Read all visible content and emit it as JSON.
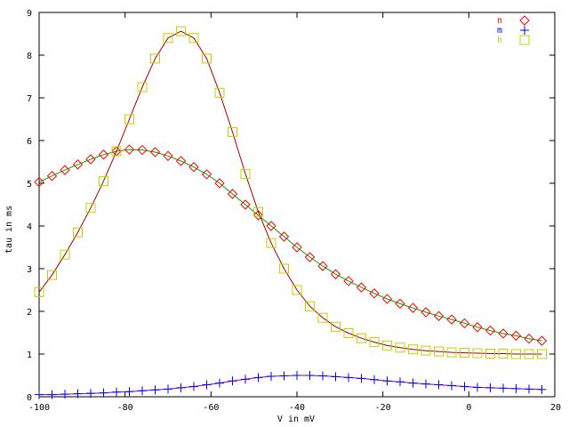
{
  "chart_data": {
    "type": "line",
    "title": "",
    "xlabel": "V in mV",
    "ylabel": "tau in ms",
    "xlim": [
      -100,
      20
    ],
    "ylim": [
      0,
      9
    ],
    "xticks": [
      -100,
      -80,
      -60,
      -40,
      -20,
      0,
      20
    ],
    "yticks": [
      0,
      1,
      2,
      3,
      4,
      5,
      6,
      7,
      8,
      9
    ],
    "grid": false,
    "legend_position": "top-right",
    "series": [
      {
        "name": "n",
        "label_color": "#ff0000",
        "marker": "diamond",
        "marker_color": "#ff0000",
        "line_color": "#00a000",
        "x": [
          -100,
          -97,
          -94,
          -91,
          -88,
          -85,
          -82,
          -79,
          -76,
          -73,
          -70,
          -67,
          -64,
          -61,
          -58,
          -55,
          -52,
          -49,
          -46,
          -43,
          -40,
          -37,
          -34,
          -31,
          -28,
          -25,
          -22,
          -19,
          -16,
          -13,
          -10,
          -7,
          -4,
          -1,
          2,
          5,
          8,
          11,
          14,
          17
        ],
        "y": [
          5.03,
          5.17,
          5.31,
          5.44,
          5.56,
          5.67,
          5.75,
          5.79,
          5.78,
          5.73,
          5.64,
          5.52,
          5.38,
          5.21,
          5.0,
          4.75,
          4.5,
          4.25,
          4.0,
          3.75,
          3.5,
          3.27,
          3.06,
          2.87,
          2.71,
          2.56,
          2.42,
          2.29,
          2.18,
          2.08,
          1.98,
          1.89,
          1.81,
          1.72,
          1.63,
          1.55,
          1.48,
          1.43,
          1.36,
          1.31
        ]
      },
      {
        "name": "m",
        "label_color": "#0000ff",
        "marker": "plus",
        "marker_color": "#0000ff",
        "line_color": "#a000a0",
        "x": [
          -100,
          -97,
          -94,
          -91,
          -88,
          -85,
          -82,
          -79,
          -76,
          -73,
          -70,
          -67,
          -64,
          -61,
          -58,
          -55,
          -52,
          -49,
          -46,
          -43,
          -40,
          -37,
          -34,
          -31,
          -28,
          -25,
          -22,
          -19,
          -16,
          -13,
          -10,
          -7,
          -4,
          -1,
          2,
          5,
          8,
          11,
          14,
          17
        ],
        "y": [
          0.05,
          0.05,
          0.06,
          0.07,
          0.08,
          0.09,
          0.11,
          0.12,
          0.14,
          0.16,
          0.18,
          0.21,
          0.24,
          0.28,
          0.32,
          0.37,
          0.41,
          0.45,
          0.48,
          0.49,
          0.5,
          0.5,
          0.49,
          0.47,
          0.45,
          0.43,
          0.4,
          0.37,
          0.35,
          0.32,
          0.3,
          0.28,
          0.26,
          0.24,
          0.22,
          0.21,
          0.2,
          0.19,
          0.18,
          0.17
        ]
      },
      {
        "name": "h",
        "label_color": "#c8c800",
        "marker": "square",
        "marker_color": "#c0d000",
        "line_color": "#a00000",
        "x": [
          -100,
          -97,
          -94,
          -91,
          -88,
          -85,
          -82,
          -79,
          -76,
          -73,
          -70,
          -67,
          -64,
          -61,
          -58,
          -55,
          -52,
          -49,
          -46,
          -43,
          -40,
          -37,
          -34,
          -31,
          -28,
          -25,
          -22,
          -19,
          -16,
          -13,
          -10,
          -7,
          -4,
          -1,
          2,
          5,
          8,
          11,
          14,
          17
        ],
        "y": [
          2.45,
          2.85,
          3.33,
          3.85,
          4.42,
          5.05,
          5.75,
          6.5,
          7.25,
          7.92,
          8.4,
          8.56,
          8.4,
          7.92,
          7.12,
          6.2,
          5.22,
          4.33,
          3.6,
          3.0,
          2.5,
          2.12,
          1.85,
          1.64,
          1.49,
          1.37,
          1.28,
          1.2,
          1.15,
          1.11,
          1.08,
          1.06,
          1.04,
          1.03,
          1.02,
          1.01,
          1.01,
          1.0,
          1.0,
          1.0
        ]
      }
    ]
  }
}
